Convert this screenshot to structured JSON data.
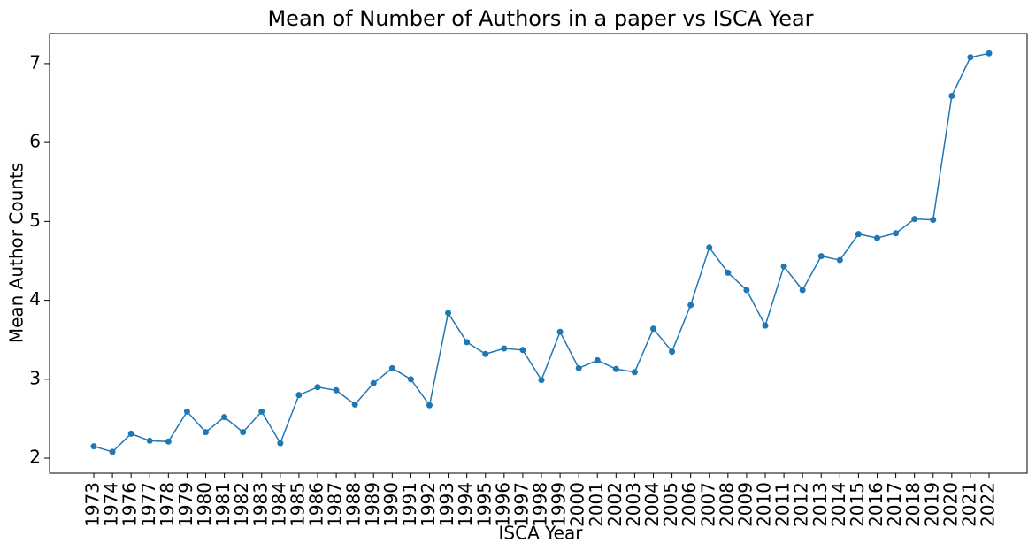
{
  "chart_data": {
    "type": "line",
    "title": "Mean of Number of Authors in a paper vs ISCA Year",
    "x_label": "ISCA Year",
    "y_label": "Mean Author Counts",
    "categories": [
      "1973",
      "1974",
      "1976",
      "1977",
      "1978",
      "1979",
      "1980",
      "1981",
      "1982",
      "1983",
      "1984",
      "1985",
      "1986",
      "1987",
      "1988",
      "1989",
      "1990",
      "1991",
      "1992",
      "1993",
      "1994",
      "1995",
      "1996",
      "1997",
      "1998",
      "1999",
      "2000",
      "2001",
      "2002",
      "2003",
      "2004",
      "2005",
      "2006",
      "2007",
      "2008",
      "2009",
      "2010",
      "2011",
      "2012",
      "2013",
      "2014",
      "2015",
      "2016",
      "2017",
      "2018",
      "2019",
      "2020",
      "2021",
      "2022"
    ],
    "series": [
      {
        "name": "Mean Author Counts",
        "color": "#1f77b4",
        "values": [
          2.15,
          2.08,
          2.31,
          2.22,
          2.21,
          2.59,
          2.33,
          2.52,
          2.33,
          2.59,
          2.19,
          2.8,
          2.9,
          2.86,
          2.68,
          2.95,
          3.14,
          3.0,
          2.67,
          3.84,
          3.47,
          3.32,
          3.39,
          3.37,
          2.99,
          3.6,
          3.14,
          3.24,
          3.13,
          3.09,
          3.64,
          3.35,
          3.94,
          4.67,
          4.35,
          4.13,
          3.68,
          4.43,
          4.13,
          4.56,
          4.51,
          4.84,
          4.79,
          4.85,
          5.03,
          5.02,
          6.59,
          7.08,
          7.13
        ]
      }
    ],
    "ylim": [
      1.81,
      7.38
    ],
    "yticks": [
      2,
      3,
      4,
      5,
      6,
      7
    ],
    "grid": false
  }
}
